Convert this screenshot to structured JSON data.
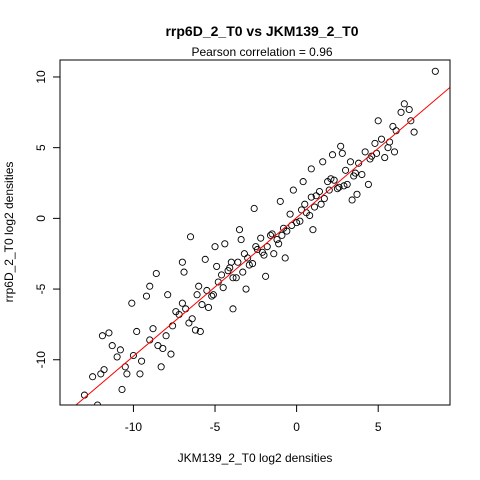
{
  "chart_data": {
    "type": "scatter",
    "title": "rrp6D_2_T0 vs JKM139_2_T0",
    "subtitle": "Pearson correlation =  0.96",
    "xlabel": "JKM139_2_T0 log2 densities",
    "ylabel": "rrp6D_2_T0 log2 densities",
    "xlim": [
      -14.5,
      9.4
    ],
    "ylim": [
      -13.2,
      11.2
    ],
    "x_ticks": [
      -10,
      -5,
      0,
      5
    ],
    "y_ticks": [
      -10,
      -5,
      0,
      5,
      10
    ],
    "x_tick_labels": [
      "-10",
      "-5",
      "0",
      "5"
    ],
    "y_tick_labels": [
      "-10",
      "-5",
      "0",
      "5",
      "10"
    ],
    "grid": false,
    "legend": "none",
    "point_style": "open-circle",
    "point_color": "#000000",
    "fit_line": {
      "color": "#ff0000",
      "intercept": 0.05,
      "slope": 0.98
    },
    "series": [
      {
        "x": [
          8.5,
          6.9,
          6.6,
          7.0,
          6.1,
          5.7,
          5.2,
          4.9,
          6.4,
          3.5,
          4.2,
          3.0,
          5.9,
          2.6,
          5.6,
          4.5,
          3.8,
          2.3,
          4.0,
          3.3,
          2.0,
          1.7,
          4.6,
          1.4,
          2.9,
          1.1,
          0.9,
          3.6,
          0.6,
          2.1,
          0.3,
          1.5,
          0.0,
          1.2,
          -0.3,
          2.5,
          -0.6,
          0.8,
          -0.9,
          0.5,
          -1.2,
          -1.5,
          0.2,
          -1.8,
          -0.4,
          -2.1,
          -0.8,
          -2.4,
          -1.1,
          -2.7,
          -1.6,
          -3.0,
          -2.0,
          -3.3,
          -2.5,
          -3.6,
          -3.9,
          -2.9,
          -4.2,
          -3.2,
          -4.5,
          -4.8,
          -3.7,
          -5.1,
          -4.1,
          -5.5,
          -5.8,
          -4.6,
          -6.1,
          -6.4,
          -5.2,
          -6.8,
          -7.2,
          -6.6,
          -7.6,
          -8.0,
          -7.0,
          -8.5,
          -9.0,
          -9.5,
          -10.0,
          -10.5,
          -11.0,
          -12.5,
          -13.0,
          -12.0,
          -11.8,
          -10.8,
          -9.8,
          -8.8,
          -8.2,
          -7.4,
          -6.0,
          -5.4,
          -4.0,
          -2.2,
          -1.4,
          1.9,
          4.8,
          3.1,
          -7.0,
          -5.0,
          -3.5,
          -6.5,
          0.9,
          2.8,
          -4.4,
          3.7,
          5.4,
          -9.2,
          -10.1,
          -11.5,
          -11.3,
          -9.0,
          -7.9,
          -8.6,
          -6.9,
          -5.6,
          -2.6,
          -0.2,
          1.6,
          2.2,
          -3.9,
          -1.9,
          -6.2,
          5.0,
          6.0,
          7.2,
          -12.2,
          -10.4,
          -5.9,
          -3.1,
          -0.7,
          1.0,
          3.4,
          4.4,
          -8.3,
          -11.9,
          -10.7,
          -9.6,
          -7.7,
          -4.9,
          -3.4,
          -1.0,
          0.4,
          2.7
        ],
        "y": [
          10.4,
          7.7,
          8.1,
          6.9,
          6.2,
          5.4,
          5.6,
          4.6,
          7.5,
          3.0,
          4.7,
          3.4,
          6.5,
          2.2,
          5.0,
          4.2,
          3.9,
          2.7,
          3.1,
          4.0,
          2.0,
          1.4,
          4.4,
          1.9,
          2.3,
          0.8,
          1.5,
          3.2,
          0.4,
          2.8,
          0.6,
          1.0,
          -0.3,
          1.6,
          -0.5,
          2.1,
          -0.9,
          0.2,
          -1.2,
          1.0,
          -1.5,
          -1.1,
          -0.2,
          -2.0,
          0.3,
          -2.4,
          -0.7,
          -2.2,
          -1.8,
          -3.2,
          -1.2,
          -2.8,
          -2.6,
          -3.8,
          -2.0,
          -3.1,
          -4.2,
          -3.3,
          -3.7,
          -2.5,
          -4.9,
          -4.5,
          -4.2,
          -5.4,
          -3.5,
          -5.1,
          -6.1,
          -4.0,
          -5.4,
          -7.1,
          -5.5,
          -6.4,
          -6.8,
          -7.4,
          -7.6,
          -8.3,
          -6.0,
          -9.0,
          -8.6,
          -10.1,
          -9.7,
          -10.5,
          -9.8,
          -11.2,
          -12.5,
          -11.0,
          -10.7,
          -9.3,
          -8.0,
          -7.8,
          -9.2,
          -6.6,
          -4.8,
          -6.3,
          -3.1,
          -1.4,
          -2.5,
          2.6,
          5.3,
          2.4,
          -3.1,
          -2.0,
          -0.8,
          -1.3,
          3.5,
          4.6,
          -1.8,
          1.7,
          4.3,
          -5.5,
          -6.0,
          -8.1,
          -9.0,
          -4.8,
          -5.4,
          -3.9,
          -3.8,
          -2.9,
          0.7,
          2.0,
          4.0,
          4.5,
          -6.4,
          -4.1,
          -7.9,
          6.9,
          4.7,
          6.1,
          -13.2,
          -11.0,
          -8.0,
          -5.0,
          -2.8,
          -0.8,
          1.3,
          2.4,
          -10.5,
          -8.3,
          -12.1,
          -11.0,
          -9.6,
          -3.4,
          -1.5,
          1.2,
          2.6,
          5.1
        ]
      }
    ]
  }
}
